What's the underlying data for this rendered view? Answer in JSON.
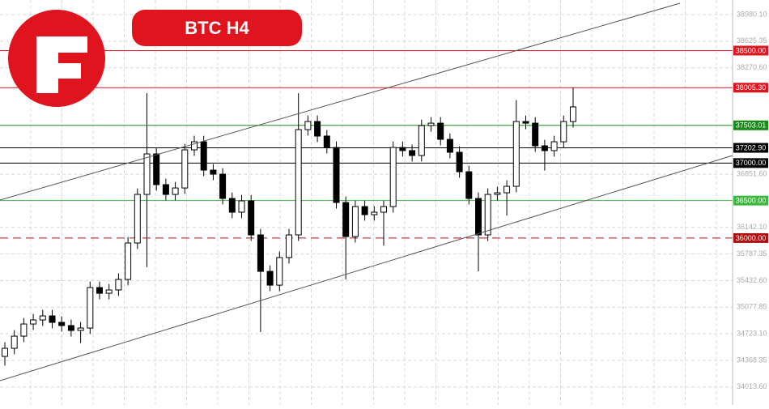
{
  "chart_data": {
    "type": "candlestick",
    "title": "BTC H4",
    "ylim": [
      33882.45,
      39174.45
    ],
    "yticks": [
      {
        "value": 34013.6,
        "label": "34013.60"
      },
      {
        "value": 34368.35,
        "label": "34368.35"
      },
      {
        "value": 34723.1,
        "label": "34723.10"
      },
      {
        "value": 35077.85,
        "label": "35077.85"
      },
      {
        "value": 35432.6,
        "label": "35432.60"
      },
      {
        "value": 35787.35,
        "label": "35787.35"
      },
      {
        "value": 36142.1,
        "label": "36142.10"
      },
      {
        "value": 36851.6,
        "label": "36851.60"
      },
      {
        "value": 38270.6,
        "label": "38270.60"
      },
      {
        "value": 38625.35,
        "label": "38625.35"
      },
      {
        "value": 38980.1,
        "label": "38980.10"
      }
    ],
    "grid": true,
    "levels": [
      {
        "value": 38500,
        "label": "38500.00",
        "color": "#e0141e",
        "style": "solid"
      },
      {
        "value": 38005.3,
        "label": "38005.30",
        "color": "#e0141e",
        "style": "solid"
      },
      {
        "value": 37503.01,
        "label": "37503.01",
        "color": "#1a8a1a",
        "style": "solid"
      },
      {
        "value": 37202.9,
        "label": "37202.90",
        "color": "#000000",
        "style": "solid"
      },
      {
        "value": 37000,
        "label": "37000.00",
        "color": "#000000",
        "style": "solid"
      },
      {
        "value": 36500,
        "label": "36500.00",
        "color": "#3cb83c",
        "style": "solid"
      },
      {
        "value": 36000,
        "label": "36000.00",
        "color": "#b01010",
        "style": "dashed"
      }
    ],
    "open": [
      34422,
      34530,
      34692,
      34854,
      34908,
      34962,
      34876,
      34833,
      34768,
      34800,
      35340,
      35264,
      35308,
      35448,
      35934,
      36582,
      37122,
      36712,
      36582,
      36668,
      37176,
      37284,
      36906,
      36852,
      36528,
      36345,
      36496,
      36042,
      35556,
      35372,
      35740,
      36042,
      37446,
      37554,
      37360,
      37208,
      36474,
      36020,
      36420,
      36312,
      36345,
      36420,
      37208,
      37166,
      37101,
      37500,
      37532,
      37316,
      37144,
      36884,
      36528,
      36042,
      36582,
      36604,
      36690,
      37554,
      37532,
      37230,
      37166,
      37284,
      37554
    ],
    "high": [
      34610,
      34772,
      34934,
      34988,
      35042,
      35042,
      34956,
      34913,
      34880,
      35420,
      35420,
      35388,
      35528,
      36014,
      36662,
      37932,
      37202,
      36792,
      36748,
      37256,
      37364,
      37364,
      36986,
      36932,
      36608,
      36576,
      36576,
      36122,
      35636,
      35820,
      36122,
      37932,
      37634,
      37634,
      37440,
      37288,
      36554,
      36500,
      36500,
      36425,
      36500,
      37288,
      37288,
      37246,
      37580,
      37612,
      37612,
      37396,
      37224,
      36964,
      36608,
      36662,
      36684,
      36770,
      37840,
      37634,
      37612,
      37310,
      37364,
      37634,
      38008
    ],
    "low": [
      34300,
      34450,
      34612,
      34774,
      34828,
      34796,
      34753,
      34688,
      34600,
      34720,
      35184,
      35184,
      35228,
      35368,
      35854,
      35610,
      36632,
      36502,
      36502,
      36588,
      37096,
      36826,
      36772,
      36448,
      36265,
      36265,
      35962,
      34746,
      35292,
      35292,
      35660,
      35962,
      37366,
      37280,
      37128,
      36394,
      35448,
      35940,
      36232,
      36232,
      35900,
      36340,
      37086,
      37021,
      37021,
      37420,
      37236,
      37064,
      36804,
      36448,
      35556,
      35962,
      36502,
      36300,
      36610,
      37452,
      37150,
      36900,
      37086,
      37204,
      37474
    ],
    "close": [
      34530,
      34692,
      34854,
      34908,
      34962,
      34876,
      34833,
      34768,
      34800,
      35340,
      35264,
      35308,
      35448,
      35934,
      36582,
      37122,
      36712,
      36582,
      36668,
      37176,
      37284,
      36906,
      36852,
      36528,
      36345,
      36496,
      36042,
      35556,
      35372,
      35740,
      36042,
      37446,
      37554,
      37360,
      37208,
      36474,
      36020,
      36420,
      36312,
      36345,
      36420,
      37208,
      37166,
      37101,
      37500,
      37532,
      37316,
      37144,
      36884,
      36528,
      36042,
      36582,
      36604,
      36690,
      37554,
      37532,
      37230,
      37166,
      37284,
      37554,
      37749
    ]
  }
}
